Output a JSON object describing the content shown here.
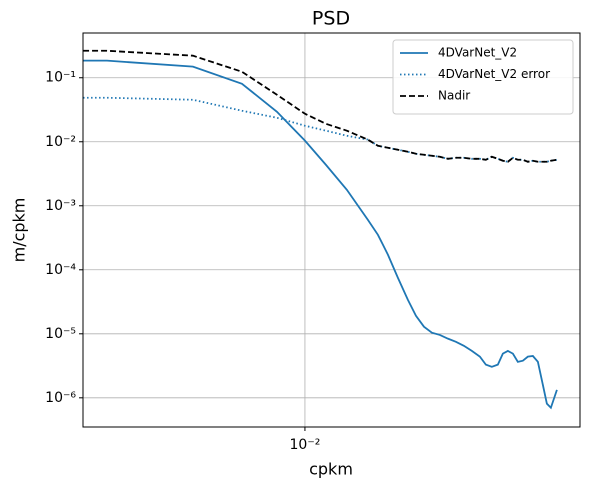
{
  "chart_data": {
    "type": "line",
    "title": "PSD",
    "x_label": "cpkm",
    "y_label": "m/cpkm",
    "xscale": "log",
    "yscale": "log",
    "grid": true,
    "legend": "upper right",
    "x": [
      0.003371,
      0.003791,
      0.005776,
      0.007345,
      0.008718,
      0.01,
      0.01108,
      0.01228,
      0.01361,
      0.0143,
      0.01502,
      0.01577,
      0.01656,
      0.01723,
      0.01792,
      0.01863,
      0.01937,
      0.02015,
      0.02096,
      0.02179,
      0.02266,
      0.02357,
      0.02427,
      0.02499,
      0.02574,
      0.02638,
      0.02704,
      0.02771,
      0.02839,
      0.0291,
      0.02982,
      0.03056,
      0.03132,
      0.03209,
      0.03273,
      0.03338,
      0.03438
    ],
    "series": [
      {
        "name": "4DVarNet_V2",
        "color": "#1f77b4",
        "linestyle": "solid",
        "values": [
          0.185,
          0.185,
          0.149,
          0.0806,
          0.0294,
          0.0104,
          0.00437,
          0.00178,
          0.000604,
          0.000352,
          0.000172,
          7.5e-05,
          3.4e-05,
          1.91e-05,
          1.29e-05,
          1.04e-05,
          9.6e-06,
          8.4e-06,
          7.5e-06,
          6.5e-06,
          5.4e-06,
          4.4e-06,
          3.3e-06,
          3.05e-06,
          3.3e-06,
          4.9e-06,
          5.4e-06,
          4.9e-06,
          3.65e-06,
          3.8e-06,
          4.4e-06,
          4.5e-06,
          3.65e-06,
          1.6e-06,
          8.1e-07,
          7e-07,
          1.33e-06
        ]
      },
      {
        "name": "4DVarNet_V2 error",
        "color": "#1f77b4",
        "linestyle": "dotted",
        "values": [
          0.0487,
          0.0487,
          0.0453,
          0.0305,
          0.0237,
          0.0178,
          0.0149,
          0.0124,
          0.0108,
          0.00866,
          0.00805,
          0.0075,
          0.00698,
          0.00649,
          0.00626,
          0.00604,
          0.00583,
          0.00542,
          0.00562,
          0.00562,
          0.00542,
          0.00542,
          0.00523,
          0.00583,
          0.00542,
          0.00505,
          0.00487,
          0.00562,
          0.00523,
          0.00523,
          0.00487,
          0.00505,
          0.00487,
          0.00487,
          0.00487,
          0.00505,
          0.00523
        ]
      },
      {
        "name": "Nadir",
        "color": "#000000",
        "linestyle": "dashed",
        "values": [
          0.264,
          0.264,
          0.221,
          0.124,
          0.0542,
          0.0274,
          0.0191,
          0.0149,
          0.0108,
          0.00866,
          0.00805,
          0.0075,
          0.00698,
          0.00649,
          0.00626,
          0.00604,
          0.00583,
          0.00542,
          0.00562,
          0.00562,
          0.00542,
          0.00542,
          0.00523,
          0.00583,
          0.00542,
          0.00505,
          0.00487,
          0.00562,
          0.00523,
          0.00523,
          0.00487,
          0.00505,
          0.00487,
          0.00487,
          0.00487,
          0.00505,
          0.00523
        ]
      }
    ],
    "xlim": [
      0.00337,
      0.0385
    ],
    "ylim": [
      3.5e-07,
      0.5
    ],
    "xticks": [
      {
        "value": 0.01,
        "label": "10⁻²"
      }
    ],
    "yticks": [
      {
        "value": 1e-06,
        "label": "10⁻⁶"
      },
      {
        "value": 1e-05,
        "label": "10⁻⁵"
      },
      {
        "value": 0.0001,
        "label": "10⁻⁴"
      },
      {
        "value": 0.001,
        "label": "10⁻³"
      },
      {
        "value": 0.01,
        "label": "10⁻²"
      },
      {
        "value": 0.1,
        "label": "10⁻¹"
      }
    ]
  }
}
